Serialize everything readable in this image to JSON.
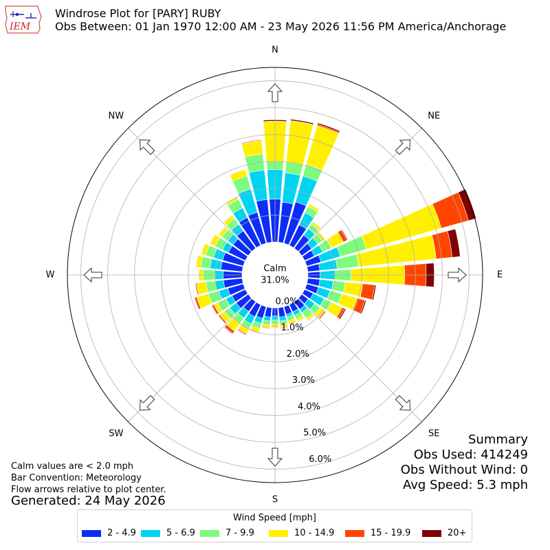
{
  "logo": {
    "text": "IEM"
  },
  "title": {
    "line1": "Windrose Plot for [PARY] RUBY",
    "line2": "Obs Between: 01 Jan 1970 12:00 AM - 23 May 2026 11:56 PM America/Anchorage"
  },
  "chart_data": {
    "type": "windrose",
    "direction_labels": [
      "N",
      "NE",
      "E",
      "SE",
      "S",
      "SW",
      "W",
      "NW"
    ],
    "calm_label": "Calm",
    "calm_value": "31.0%",
    "radial_tick_labels": [
      "0.0%",
      "1.0%",
      "2.0%",
      "3.0%",
      "4.0%",
      "5.0%",
      "6.0%"
    ],
    "rmax_percent": 6.5,
    "grid": true,
    "bins": [
      {
        "label": "2 - 4.9",
        "color": "#0d2cf7"
      },
      {
        "label": "5 - 6.9",
        "color": "#00d4f0"
      },
      {
        "label": "7 - 9.9",
        "color": "#7dfb7c"
      },
      {
        "label": "10 - 14.9",
        "color": "#fff000"
      },
      {
        "label": "15 - 19.9",
        "color": "#ff4500"
      },
      {
        "label": "20+",
        "color": "#7f0000"
      }
    ],
    "directions_deg": [
      0,
      10,
      20,
      30,
      40,
      50,
      60,
      70,
      80,
      90,
      100,
      110,
      120,
      130,
      140,
      150,
      160,
      170,
      180,
      190,
      200,
      210,
      220,
      230,
      240,
      250,
      260,
      270,
      280,
      290,
      300,
      310,
      320,
      330,
      340,
      350
    ],
    "cumulative_percent": [
      [
        1.6,
        2.7,
        3.0,
        4.5,
        4.5,
        4.55
      ],
      [
        1.5,
        2.6,
        3.0,
        4.55,
        4.55,
        4.6
      ],
      [
        1.6,
        2.6,
        3.05,
        4.55,
        4.6,
        4.65
      ],
      [
        0.85,
        1.35,
        1.6,
        1.7,
        1.72,
        1.73
      ],
      [
        0.6,
        0.9,
        1.1,
        1.2,
        1.22,
        1.23
      ],
      [
        0.45,
        0.75,
        0.95,
        1.05,
        1.07,
        1.08
      ],
      [
        0.4,
        0.75,
        1.1,
        1.6,
        1.75,
        1.78
      ],
      [
        0.55,
        1.3,
        2.3,
        5.2,
        6.25,
        6.55
      ],
      [
        0.45,
        1.1,
        1.9,
        4.8,
        5.4,
        5.7
      ],
      [
        0.45,
        1.0,
        1.6,
        3.6,
        4.4,
        4.7
      ],
      [
        0.45,
        0.95,
        1.4,
        2.05,
        2.5,
        2.55
      ],
      [
        0.45,
        0.9,
        1.35,
        1.95,
        2.25,
        2.3
      ],
      [
        0.35,
        0.8,
        1.1,
        1.55,
        1.65,
        1.7
      ],
      [
        0.3,
        0.6,
        0.85,
        1.05,
        1.1,
        1.12
      ],
      [
        0.35,
        0.5,
        0.75,
        0.85,
        0.87,
        0.88
      ],
      [
        0.3,
        0.45,
        0.6,
        0.7,
        0.72,
        0.73
      ],
      [
        0.3,
        0.4,
        0.55,
        0.65,
        0.68,
        0.69
      ],
      [
        0.35,
        0.5,
        0.65,
        0.75,
        0.78,
        0.79
      ],
      [
        0.3,
        0.45,
        0.6,
        0.7,
        0.73,
        0.74
      ],
      [
        0.35,
        0.5,
        0.65,
        0.75,
        0.78,
        0.79
      ],
      [
        0.45,
        0.65,
        0.85,
        1.0,
        1.03,
        1.04
      ],
      [
        0.5,
        0.8,
        1.0,
        1.2,
        1.24,
        1.26
      ],
      [
        0.45,
        0.75,
        1.0,
        1.35,
        1.45,
        1.48
      ],
      [
        0.55,
        0.85,
        1.1,
        1.3,
        1.36,
        1.38
      ],
      [
        0.55,
        0.8,
        1.15,
        1.3,
        1.38,
        1.4
      ],
      [
        0.6,
        0.95,
        1.35,
        1.8,
        1.88,
        1.9
      ],
      [
        0.7,
        1.0,
        1.35,
        1.7,
        1.74,
        1.76
      ],
      [
        0.7,
        1.0,
        1.45,
        1.6,
        1.62,
        1.63
      ],
      [
        0.8,
        1.2,
        1.55,
        1.72,
        1.74,
        1.75
      ],
      [
        0.8,
        1.15,
        1.45,
        1.62,
        1.64,
        1.65
      ],
      [
        0.7,
        0.95,
        1.25,
        1.45,
        1.47,
        1.48
      ],
      [
        0.7,
        0.95,
        1.2,
        1.35,
        1.37,
        1.38
      ],
      [
        0.8,
        1.1,
        1.35,
        1.5,
        1.52,
        1.53
      ],
      [
        1.15,
        1.55,
        1.9,
        2.0,
        2.02,
        2.03
      ],
      [
        1.2,
        2.1,
        2.6,
        2.85,
        2.87,
        2.88
      ],
      [
        1.6,
        2.7,
        3.3,
        3.8,
        3.83,
        3.85
      ]
    ]
  },
  "legend": {
    "title": "Wind Speed [mph]"
  },
  "notes": {
    "line1": "Calm values are < 2.0 mph",
    "line2": "Bar Convention: Meteorology",
    "line3": "Flow arrows relative to plot center."
  },
  "generated": "Generated: 24 May 2026",
  "summary": {
    "heading": "Summary",
    "obs_used": "Obs Used: 414249",
    "obs_without_wind": "Obs Without Wind: 0",
    "avg_speed": "Avg Speed: 5.3 mph"
  }
}
